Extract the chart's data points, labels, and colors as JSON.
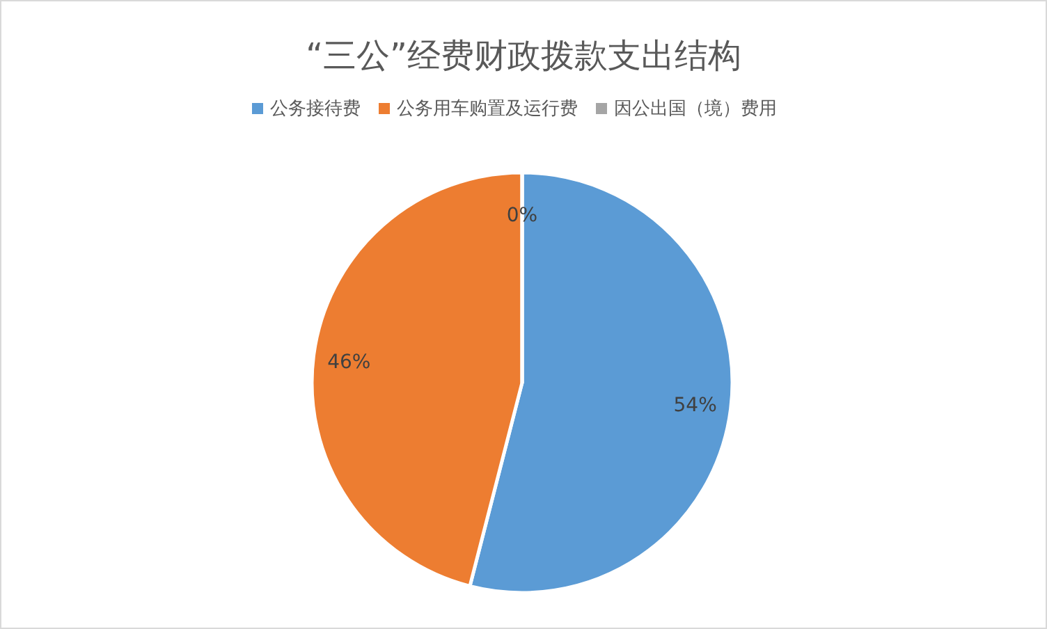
{
  "chart_data": {
    "type": "pie",
    "title": "“三公”经费财政拨款支出结构",
    "categories": [
      "公务接待费",
      "公务用车购置及运行费",
      "因公出国（境）费用"
    ],
    "values": [
      54,
      46,
      0
    ],
    "colors": [
      "#5b9bd5",
      "#ed7d31",
      "#a5a5a5"
    ],
    "value_labels": [
      "54%",
      "46%",
      "0%"
    ],
    "legend": "top"
  }
}
